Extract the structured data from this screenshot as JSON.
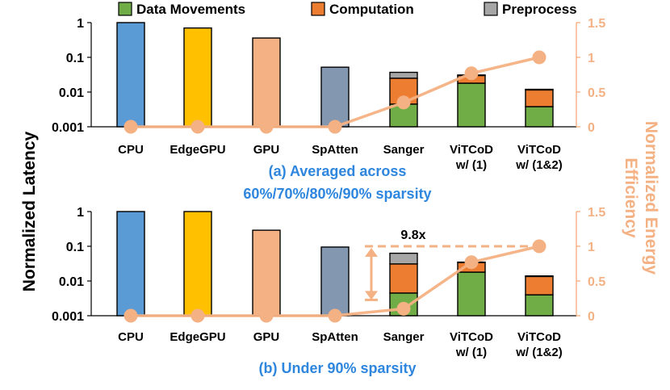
{
  "colors": {
    "cpu": "#5b9bd5",
    "edgegpu": "#ffc000",
    "gpu": "#f4b183",
    "spatten": "#8497b0",
    "data_movements": "#70ad47",
    "computation": "#ed7d31",
    "preprocess": "#a6a6a6",
    "line": "#f4b183",
    "right_axis": "#f4b183",
    "subtitle": "#2e86de"
  },
  "chart_data": {
    "type": "bar",
    "y_axis_label": "Normalized Latency",
    "y2_axis_label": [
      "Normalized Energy",
      "Efficiency"
    ],
    "legend": [
      "Data Movements",
      "Computation",
      "Preprocess"
    ],
    "legend_position": "top",
    "panels": [
      {
        "id": "a",
        "subtitle": [
          "(a) Averaged across",
          "60%/70%/80%/90% sparsity"
        ],
        "y_scale": "log",
        "y_ticks": [
          "1",
          "0.1",
          "0.01",
          "0.001"
        ],
        "y_range": [
          0.001,
          1
        ],
        "y2_ticks": [
          "1.5",
          "1",
          "0.5",
          "0"
        ],
        "y2_range": [
          0,
          1.5
        ],
        "categories": [
          {
            "name": "CPU",
            "label": [
              "CPU"
            ],
            "total": 1.0,
            "color_key": "cpu"
          },
          {
            "name": "EdgeGPU",
            "label": [
              "EdgeGPU"
            ],
            "total": 0.7,
            "color_key": "edgegpu"
          },
          {
            "name": "GPU",
            "label": [
              "GPU"
            ],
            "total": 0.36,
            "color_key": "gpu"
          },
          {
            "name": "SpAtten",
            "label": [
              "SpAtten"
            ],
            "total": 0.052,
            "color_key": "spatten"
          },
          {
            "name": "Sanger",
            "label": [
              "Sanger"
            ],
            "stacked": [
              0.0045,
              0.0205,
              0.012
            ]
          },
          {
            "name": "ViTCoD w/ (1)",
            "label": [
              "ViTCoD",
              "w/ (1)"
            ],
            "stacked": [
              0.018,
              0.012,
              0.001
            ]
          },
          {
            "name": "ViTCoD w/ (1&2)",
            "label": [
              "ViTCoD",
              "w/ (1&2)"
            ],
            "stacked": [
              0.0038,
              0.0077,
              0.0005
            ]
          }
        ],
        "energy_efficiency": [
          0,
          0,
          0,
          0,
          0.35,
          0.77,
          1.0
        ]
      },
      {
        "id": "b",
        "subtitle": [
          "(b) Under 90% sparsity"
        ],
        "y_scale": "log",
        "y_ticks": [
          "1",
          "0.1",
          "0.01",
          "0.001"
        ],
        "y_range": [
          0.001,
          1
        ],
        "y2_ticks": [
          "1.5",
          "1",
          "0.5",
          "0"
        ],
        "y2_range": [
          0,
          1.5
        ],
        "categories": [
          {
            "name": "CPU",
            "label": [
              "CPU"
            ],
            "total": 1.0,
            "color_key": "cpu"
          },
          {
            "name": "EdgeGPU",
            "label": [
              "EdgeGPU"
            ],
            "total": 1.0,
            "color_key": "edgegpu"
          },
          {
            "name": "GPU",
            "label": [
              "GPU"
            ],
            "total": 0.29,
            "color_key": "gpu"
          },
          {
            "name": "SpAtten",
            "label": [
              "SpAtten"
            ],
            "total": 0.095,
            "color_key": "spatten"
          },
          {
            "name": "Sanger",
            "label": [
              "Sanger"
            ],
            "stacked": [
              0.0045,
              0.0265,
              0.032
            ]
          },
          {
            "name": "ViTCoD w/ (1)",
            "label": [
              "ViTCoD",
              "w/ (1)"
            ],
            "stacked": [
              0.018,
              0.016,
              0.001
            ]
          },
          {
            "name": "ViTCoD w/ (1&2)",
            "label": [
              "ViTCoD",
              "w/ (1&2)"
            ],
            "stacked": [
              0.004,
              0.0095,
              0.0005
            ]
          }
        ],
        "energy_efficiency": [
          0,
          0,
          0,
          0,
          0.1,
          0.77,
          1.0
        ],
        "annotation": {
          "text": "9.8x",
          "between": [
            "Sanger",
            "ViTCoD w/ (1&2)"
          ]
        }
      }
    ]
  }
}
